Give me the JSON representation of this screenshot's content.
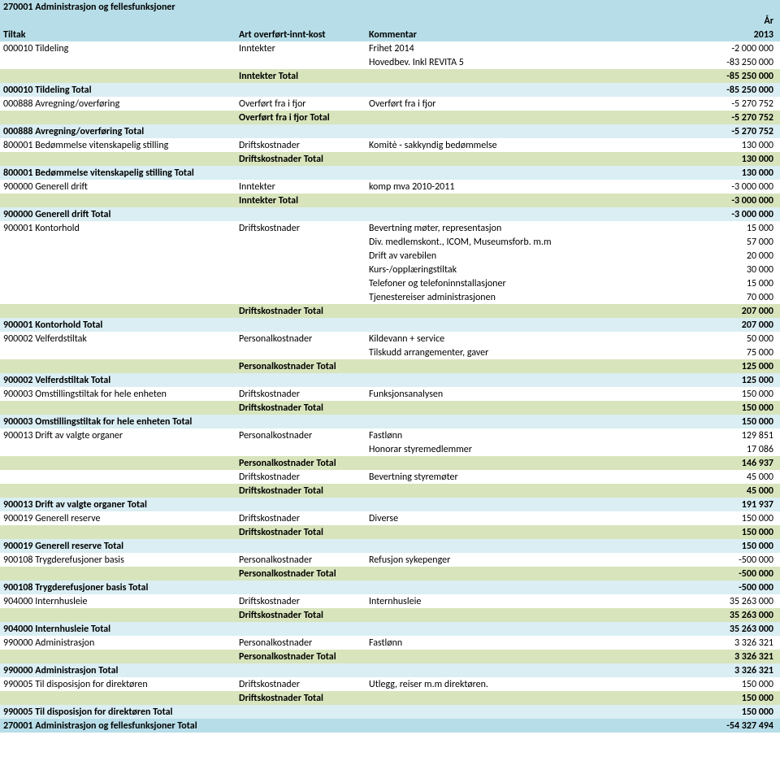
{
  "colors": {
    "title_bg": "#b7dee8",
    "section_bg": "#d8e4bc",
    "tiltak_total_bg": "#daeef3",
    "grand_total_bg": "#b7dee8",
    "header_fg": "#000000"
  },
  "header": {
    "maintitle": "270001 Administrasjon og fellesfunksjoner",
    "year_label": "År",
    "col_tiltak": "Tiltak",
    "col_art": "Art overført-innt-kost",
    "col_kommentar": "Kommentar",
    "col_year": "2013"
  },
  "rows": [
    {
      "style": "title",
      "c1": "270001 Administrasjon og fellesfunksjoner",
      "c2": "",
      "c3": "",
      "c4": ""
    },
    {
      "style": "title_year",
      "c1": "",
      "c2": "",
      "c3": "",
      "c4": "År"
    },
    {
      "style": "title_hdr",
      "c1": "Tiltak",
      "c2": "Art overført-innt-kost",
      "c3": "Kommentar",
      "c4": "2013"
    },
    {
      "style": "plain",
      "c1": "000010 Tildeling",
      "c2": "Inntekter",
      "c3": "Frihet 2014",
      "c4": "-2 000 000"
    },
    {
      "style": "plain",
      "c1": "",
      "c2": "",
      "c3": "Hovedbev. Inkl REVITA 5",
      "c4": "-83 250 000"
    },
    {
      "style": "sub",
      "c1": "",
      "c2": "Inntekter Total",
      "c3": "",
      "c4": "-85 250 000"
    },
    {
      "style": "tt",
      "c1": "000010 Tildeling Total",
      "c2": "",
      "c3": "",
      "c4": "-85 250 000"
    },
    {
      "style": "plain",
      "c1": "000888 Avregning/overføring",
      "c2": "Overført fra i fjor",
      "c3": "Overført fra i fjor",
      "c4": "-5 270 752"
    },
    {
      "style": "sub",
      "c1": "",
      "c2": "Overført fra i fjor Total",
      "c3": "",
      "c4": "-5 270 752"
    },
    {
      "style": "tt",
      "c1": "000888 Avregning/overføring Total",
      "c2": "",
      "c3": "",
      "c4": "-5 270 752"
    },
    {
      "style": "plain",
      "c1": "800001 Bedømmelse vitenskapelig stilling",
      "c2": "Driftskostnader",
      "c3": "Komitè - sakkyndig bedømmelse",
      "c4": "130 000"
    },
    {
      "style": "sub",
      "c1": "",
      "c2": "Driftskostnader Total",
      "c3": "",
      "c4": "130 000"
    },
    {
      "style": "tt",
      "c1": "800001 Bedømmelse vitenskapelig stilling Total",
      "c2": "",
      "c3": "",
      "c4": "130 000"
    },
    {
      "style": "plain",
      "c1": "900000 Generell drift",
      "c2": "Inntekter",
      "c3": "komp mva 2010-2011",
      "c4": "-3 000 000"
    },
    {
      "style": "sub",
      "c1": "",
      "c2": "Inntekter Total",
      "c3": "",
      "c4": "-3 000 000"
    },
    {
      "style": "tt",
      "c1": "900000 Generell drift Total",
      "c2": "",
      "c3": "",
      "c4": "-3 000 000"
    },
    {
      "style": "plain",
      "c1": "900001 Kontorhold",
      "c2": "Driftskostnader",
      "c3": "Bevertning møter, representasjon",
      "c4": "15 000"
    },
    {
      "style": "plain",
      "c1": "",
      "c2": "",
      "c3": "Div. medlemskont., ICOM, Museumsforb. m.m",
      "c4": "57 000"
    },
    {
      "style": "plain",
      "c1": "",
      "c2": "",
      "c3": "Drift av varebilen",
      "c4": "20 000"
    },
    {
      "style": "plain",
      "c1": "",
      "c2": "",
      "c3": "Kurs-/opplæringstiltak",
      "c4": "30 000"
    },
    {
      "style": "plain",
      "c1": "",
      "c2": "",
      "c3": "Telefoner og telefoninnstallasjoner",
      "c4": "15 000"
    },
    {
      "style": "plain",
      "c1": "",
      "c2": "",
      "c3": "Tjenestereiser administrasjonen",
      "c4": "70 000"
    },
    {
      "style": "sub",
      "c1": "",
      "c2": "Driftskostnader Total",
      "c3": "",
      "c4": "207 000"
    },
    {
      "style": "tt",
      "c1": "900001 Kontorhold Total",
      "c2": "",
      "c3": "",
      "c4": "207 000"
    },
    {
      "style": "plain",
      "c1": "900002 Velferdstiltak",
      "c2": "Personalkostnader",
      "c3": "Kildevann + service",
      "c4": "50 000"
    },
    {
      "style": "plain",
      "c1": "",
      "c2": "",
      "c3": "Tilskudd arrangementer, gaver",
      "c4": "75 000"
    },
    {
      "style": "sub",
      "c1": "",
      "c2": "Personalkostnader Total",
      "c3": "",
      "c4": "125 000"
    },
    {
      "style": "tt",
      "c1": "900002 Velferdstiltak Total",
      "c2": "",
      "c3": "",
      "c4": "125 000"
    },
    {
      "style": "plain",
      "c1": "900003 Omstillingstiltak for hele enheten",
      "c2": "Driftskostnader",
      "c3": "Funksjonsanalysen",
      "c4": "150 000"
    },
    {
      "style": "sub",
      "c1": "",
      "c2": "Driftskostnader Total",
      "c3": "",
      "c4": "150 000"
    },
    {
      "style": "tt",
      "c1": "900003 Omstillingstiltak for hele enheten Total",
      "c2": "",
      "c3": "",
      "c4": "150 000"
    },
    {
      "style": "plain",
      "c1": "900013 Drift av valgte organer",
      "c2": "Personalkostnader",
      "c3": "Fastlønn",
      "c4": "129 851"
    },
    {
      "style": "plain",
      "c1": "",
      "c2": "",
      "c3": "Honorar styremedlemmer",
      "c4": "17 086"
    },
    {
      "style": "sub",
      "c1": "",
      "c2": "Personalkostnader Total",
      "c3": "",
      "c4": "146 937"
    },
    {
      "style": "plain",
      "c1": "",
      "c2": "Driftskostnader",
      "c3": "Bevertning styremøter",
      "c4": "45 000"
    },
    {
      "style": "sub",
      "c1": "",
      "c2": "Driftskostnader Total",
      "c3": "",
      "c4": "45 000"
    },
    {
      "style": "tt",
      "c1": "900013 Drift av valgte organer Total",
      "c2": "",
      "c3": "",
      "c4": "191 937"
    },
    {
      "style": "plain",
      "c1": "900019 Generell reserve",
      "c2": "Driftskostnader",
      "c3": "Diverse",
      "c4": "150 000"
    },
    {
      "style": "sub",
      "c1": "",
      "c2": "Driftskostnader Total",
      "c3": "",
      "c4": "150 000"
    },
    {
      "style": "tt",
      "c1": "900019 Generell reserve Total",
      "c2": "",
      "c3": "",
      "c4": "150 000"
    },
    {
      "style": "plain",
      "c1": "900108 Trygderefusjoner basis",
      "c2": "Personalkostnader",
      "c3": "Refusjon sykepenger",
      "c4": "-500 000"
    },
    {
      "style": "sub",
      "c1": "",
      "c2": "Personalkostnader Total",
      "c3": "",
      "c4": "-500 000"
    },
    {
      "style": "tt",
      "c1": "900108 Trygderefusjoner basis Total",
      "c2": "",
      "c3": "",
      "c4": "-500 000"
    },
    {
      "style": "plain",
      "c1": "904000 Internhusleie",
      "c2": "Driftskostnader",
      "c3": "Internhusleie",
      "c4": "35 263 000"
    },
    {
      "style": "sub",
      "c1": "",
      "c2": "Driftskostnader Total",
      "c3": "",
      "c4": "35 263 000"
    },
    {
      "style": "tt",
      "c1": "904000 Internhusleie Total",
      "c2": "",
      "c3": "",
      "c4": "35 263 000"
    },
    {
      "style": "plain",
      "c1": "990000 Administrasjon",
      "c2": "Personalkostnader",
      "c3": "Fastlønn",
      "c4": "3 326 321"
    },
    {
      "style": "sub",
      "c1": "",
      "c2": "Personalkostnader Total",
      "c3": "",
      "c4": "3 326 321"
    },
    {
      "style": "tt",
      "c1": "990000 Administrasjon Total",
      "c2": "",
      "c3": "",
      "c4": "3 326 321"
    },
    {
      "style": "plain",
      "c1": "990005 Til disposisjon for direktøren",
      "c2": "Driftskostnader",
      "c3": "Utlegg, reiser m.m direktøren.",
      "c4": "150 000"
    },
    {
      "style": "sub",
      "c1": "",
      "c2": "Driftskostnader Total",
      "c3": "",
      "c4": "150 000"
    },
    {
      "style": "tt",
      "c1": "990005 Til disposisjon for direktøren Total",
      "c2": "",
      "c3": "",
      "c4": "150 000"
    },
    {
      "style": "grand",
      "c1": "270001 Administrasjon og fellesfunksjoner Total",
      "c2": "",
      "c3": "",
      "c4": "-54 327 494"
    }
  ]
}
